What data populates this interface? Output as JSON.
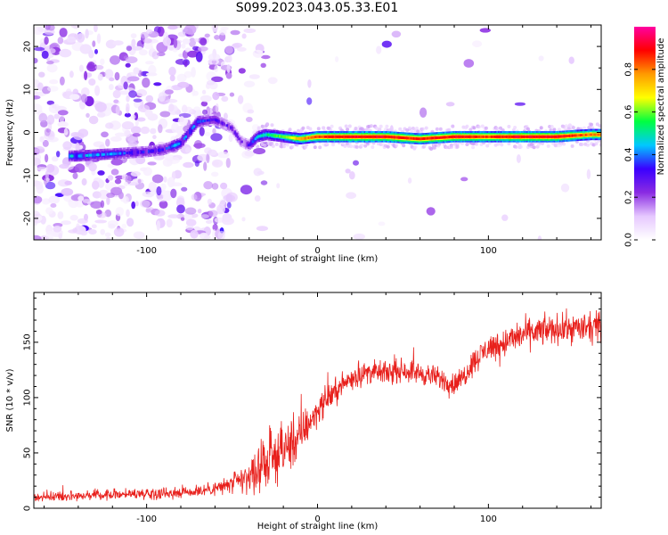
{
  "title": "S099.2023.043.05.33.E01",
  "colors": {
    "trace": "#e8201c",
    "band": "#7a00ff",
    "axis": "#000000",
    "background": "#ffffff"
  },
  "chart_data": [
    {
      "type": "heatmap",
      "xlabel": "Height of straight line (km)",
      "ylabel": "Frequency (Hz)",
      "xlim": [
        -166,
        166
      ],
      "ylim": [
        -25,
        25
      ],
      "xticks": [
        -100,
        0,
        100
      ],
      "yticks": [
        -20,
        -10,
        0,
        10,
        20
      ],
      "colorbar": {
        "label": "Normalized spectral amplitude",
        "range": [
          0,
          1
        ],
        "ticks": [
          0.0,
          0.2,
          0.4,
          0.6,
          0.8
        ],
        "colormap": [
          "#ffffff",
          "#e6c8ff",
          "#8a2be2",
          "#3a00ff",
          "#00c8ff",
          "#00ff40",
          "#ffff00",
          "#ff9a00",
          "#ff0000",
          "#ff00a0"
        ]
      },
      "ridge": {
        "x": [
          -140,
          -120,
          -100,
          -90,
          -80,
          -75,
          -70,
          -60,
          -50,
          -45,
          -40,
          -35,
          -30,
          -20,
          -10,
          0,
          20,
          40,
          60,
          80,
          100,
          120,
          140,
          160
        ],
        "y": [
          -5.5,
          -5,
          -4.5,
          -4,
          -2.5,
          0,
          2.5,
          3,
          1,
          -2,
          -3,
          -1,
          -0.5,
          -1,
          -1.5,
          -1,
          -1,
          -1,
          -1.5,
          -1,
          -1,
          -1,
          -1,
          -0.5
        ],
        "amplitude": [
          0.45,
          0.4,
          0.35,
          0.35,
          0.45,
          0.4,
          0.4,
          0.3,
          0.25,
          0.25,
          0.3,
          0.45,
          0.5,
          0.6,
          0.75,
          0.85,
          0.9,
          0.9,
          0.85,
          0.9,
          0.85,
          0.9,
          0.9,
          0.8
        ]
      }
    },
    {
      "type": "line",
      "xlabel": "Height of straight line (km)",
      "ylabel": "SNR (10 * v/v)",
      "xlim": [
        -166,
        166
      ],
      "ylim": [
        0,
        195
      ],
      "xticks": [
        -100,
        0,
        100
      ],
      "yticks": [
        0,
        50,
        100,
        150
      ],
      "series": [
        {
          "color": "#e8201c",
          "x": [
            -166,
            -150,
            -130,
            -110,
            -90,
            -75,
            -60,
            -50,
            -40,
            -35,
            -30,
            -25,
            -20,
            -15,
            -10,
            -5,
            0,
            5,
            10,
            15,
            20,
            30,
            40,
            50,
            60,
            70,
            75,
            80,
            85,
            90,
            95,
            100,
            110,
            120,
            130,
            140,
            150,
            160,
            166
          ],
          "y": [
            10,
            11,
            12,
            13,
            14,
            15,
            18,
            22,
            28,
            35,
            42,
            48,
            52,
            58,
            65,
            78,
            88,
            98,
            105,
            112,
            118,
            123,
            122,
            125,
            122,
            118,
            115,
            112,
            118,
            130,
            138,
            145,
            150,
            157,
            160,
            162,
            163,
            162,
            165
          ],
          "noise": [
            4,
            4,
            4,
            4,
            5,
            5,
            6,
            8,
            14,
            18,
            20,
            22,
            22,
            20,
            18,
            15,
            12,
            11,
            10,
            10,
            10,
            9,
            9,
            9,
            9,
            9,
            9,
            9,
            10,
            10,
            11,
            11,
            12,
            12,
            12,
            12,
            12,
            12,
            12
          ]
        }
      ]
    }
  ]
}
